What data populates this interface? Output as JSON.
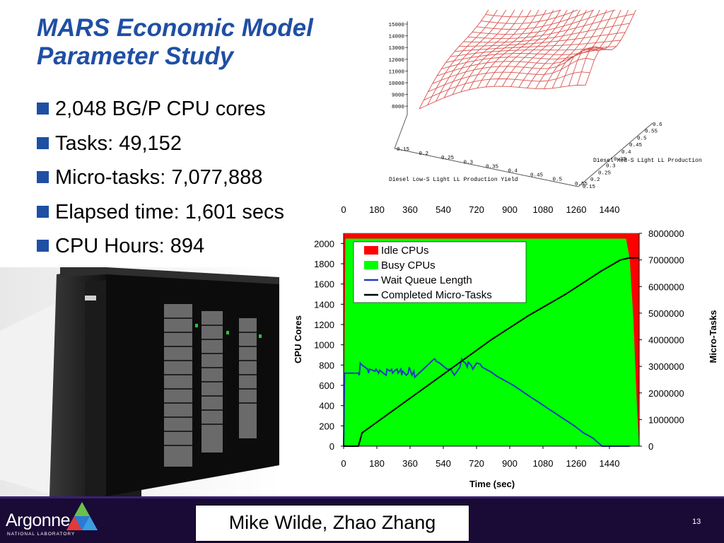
{
  "slide": {
    "title_line1": "MARS Economic Model",
    "title_line2": "Parameter Study",
    "bullets": [
      "2,048 BG/P CPU cores",
      "Tasks: 49,152",
      "Micro-tasks: 7,077,888",
      "Elapsed time: 1,601 secs",
      "CPU Hours: 894"
    ],
    "footer": {
      "logo_text": "Argonne",
      "logo_sub": "NATIONAL LABORATORY",
      "authors": "Mike Wilde, Zhao Zhang",
      "page_number": "13"
    },
    "colors": {
      "title": "#1f4fa3",
      "bullet": "#1f4fa3",
      "footer_bg": "#1a0a36",
      "mesh": "#d9534f"
    }
  },
  "surface_plot": {
    "z_ticks": [
      "15000",
      "14000",
      "13000",
      "12000",
      "11000",
      "10000",
      "9000",
      "8000"
    ],
    "x_ticks": [
      "0.15",
      "0.2",
      "0.25",
      "0.3",
      "0.35",
      "0.4",
      "0.45",
      "0.5",
      "0.55"
    ],
    "y_ticks": [
      "0.15",
      "0.2",
      "0.25",
      "0.3",
      "0.35",
      "0.4",
      "0.45",
      "0.5",
      "0.55",
      "0.6"
    ],
    "x_label": "Diesel Low-S Light LL Production Yield",
    "y_label": "Diesel Med-S Light LL Production"
  },
  "chart_data": {
    "type": "area",
    "xlabel": "Time (sec)",
    "ylabel_left": "CPU Cores",
    "ylabel_right": "Micro-Tasks",
    "x_ticks": [
      "0",
      "180",
      "360",
      "540",
      "720",
      "900",
      "1080",
      "1260",
      "1440"
    ],
    "x_top_ticks": [
      "0",
      "180",
      "360",
      "540",
      "720",
      "900",
      "1080",
      "1260",
      "1440"
    ],
    "y_left_ticks": [
      "0",
      "200",
      "400",
      "600",
      "800",
      "1000",
      "1200",
      "1400",
      "1600",
      "1800",
      "2000"
    ],
    "y_right_ticks": [
      "0",
      "1000000",
      "2000000",
      "3000000",
      "4000000",
      "5000000",
      "6000000",
      "7000000",
      "8000000"
    ],
    "xlim": [
      0,
      1601
    ],
    "ylim_left": [
      0,
      2100
    ],
    "ylim_right": [
      0,
      8000000
    ],
    "legend": [
      "Idle CPUs",
      "Busy CPUs",
      "Wait Queue Length",
      "Completed Micro-Tasks"
    ],
    "series": [
      {
        "name": "Idle CPUs",
        "color": "#ff0000",
        "x": [
          0,
          10,
          1530,
          1550,
          1570,
          1590,
          1601
        ],
        "values": [
          2048,
          2048,
          0,
          200,
          800,
          1700,
          2048
        ]
      },
      {
        "name": "Busy CPUs",
        "color": "#00ff00",
        "x": [
          0,
          10,
          1500,
          1530,
          1550,
          1570,
          1590,
          1601
        ],
        "values": [
          0,
          2048,
          2048,
          2048,
          1848,
          1248,
          348,
          0
        ]
      },
      {
        "name": "Wait Queue Length",
        "color": "#1f3fbf",
        "x": [
          0,
          5,
          80,
          85,
          90,
          100,
          130,
          135,
          140,
          170,
          175,
          190,
          195,
          215,
          230,
          235,
          250,
          260,
          265,
          280,
          290,
          295,
          310,
          315,
          320,
          340,
          350,
          355,
          370,
          380,
          385,
          490,
          495,
          500,
          520,
          560,
          580,
          600,
          630,
          640,
          645,
          660,
          670,
          675,
          690,
          700,
          720,
          740,
          750,
          760,
          780,
          800,
          830,
          860,
          890,
          920,
          960,
          1000,
          1060,
          1100,
          1150,
          1200,
          1250,
          1300,
          1350,
          1400,
          1420,
          1450,
          1500,
          1530,
          1550
        ],
        "values": [
          0,
          720,
          720,
          700,
          820,
          800,
          760,
          720,
          760,
          740,
          760,
          720,
          750,
          720,
          700,
          760,
          740,
          760,
          720,
          750,
          760,
          720,
          760,
          700,
          740,
          700,
          720,
          780,
          700,
          740,
          680,
          860,
          860,
          840,
          820,
          760,
          760,
          700,
          780,
          860,
          840,
          820,
          780,
          830,
          800,
          760,
          820,
          810,
          780,
          770,
          750,
          730,
          690,
          660,
          630,
          600,
          550,
          500,
          430,
          380,
          320,
          260,
          200,
          130,
          80,
          0,
          0,
          0,
          0,
          0,
          0
        ]
      },
      {
        "name": "Completed Micro-Tasks",
        "color": "#000000",
        "x": [
          0,
          80,
          100,
          200,
          300,
          400,
          500,
          600,
          700,
          800,
          900,
          1000,
          1100,
          1200,
          1300,
          1400,
          1500,
          1550,
          1601
        ],
        "values": [
          0,
          0,
          500000,
          1000000,
          1500000,
          2000000,
          2500000,
          3000000,
          3500000,
          4000000,
          4450000,
          4900000,
          5300000,
          5700000,
          6150000,
          6600000,
          7000000,
          7077888,
          7077888
        ]
      }
    ]
  }
}
